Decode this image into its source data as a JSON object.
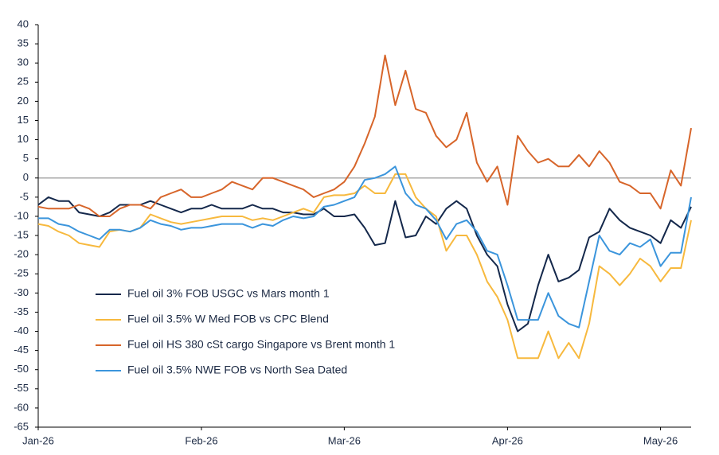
{
  "chart_data": {
    "type": "line",
    "categories": [
      "Jan-26",
      null,
      null,
      null,
      null,
      null,
      null,
      null,
      null,
      null,
      null,
      null,
      null,
      null,
      null,
      null,
      "Feb-26",
      null,
      null,
      null,
      null,
      null,
      null,
      null,
      null,
      null,
      null,
      null,
      null,
      null,
      "Mar-26",
      null,
      null,
      null,
      null,
      null,
      null,
      null,
      null,
      null,
      null,
      null,
      null,
      null,
      null,
      null,
      "Apr-26",
      null,
      null,
      null,
      null,
      null,
      null,
      null,
      null,
      null,
      null,
      null,
      null,
      null,
      null,
      "May-26",
      null,
      null,
      null
    ],
    "series": [
      {
        "name": "Fuel oil 3% FOB USGC vs Mars month 1",
        "color": "#14284b",
        "values": [
          -7,
          -5,
          -6,
          -6,
          -9,
          -9.5,
          -10,
          -9,
          -7,
          -7,
          -7,
          -6,
          -7,
          -8,
          -9,
          -8,
          -8,
          -7,
          -8,
          -8,
          -8,
          -7,
          -8,
          -8,
          -9,
          -9,
          -9.5,
          -9.5,
          -8,
          -10,
          -10,
          -9.5,
          -13,
          -17.5,
          -17,
          -6,
          -15.5,
          -15,
          -10,
          -12,
          -8,
          -6,
          -8,
          -15,
          -20,
          -23,
          -33,
          -40,
          -38,
          -28,
          -20,
          -27,
          -26,
          -24,
          -15.5,
          -14,
          -8,
          -11,
          -13,
          -14,
          -15,
          -17,
          -11,
          -13,
          -7.5
        ]
      },
      {
        "name": "Fuel oil 3.5% W Med FOB vs CPC Blend",
        "color": "#f7b93e",
        "values": [
          -12,
          -12.5,
          -14,
          -15,
          -17,
          -17.5,
          -18,
          -14,
          -13.5,
          -14,
          -13,
          -9.5,
          -10.5,
          -11.5,
          -12,
          -11.5,
          -11,
          -10.5,
          -10,
          -10,
          -10,
          -11,
          -10.5,
          -11,
          -10,
          -9,
          -8,
          -9,
          -5,
          -4.5,
          -4.5,
          -4,
          -2,
          -4,
          -4,
          1,
          1,
          -5,
          -8,
          -10,
          -19,
          -15,
          -15,
          -20,
          -27,
          -31,
          -37,
          -47,
          -47,
          -47,
          -40,
          -47,
          -43,
          -47,
          -38,
          -23,
          -25,
          -28,
          -25,
          -21,
          -23,
          -27,
          -23.5,
          -23.5,
          -11
        ]
      },
      {
        "name": "Fuel oil HS 380 cSt cargo Singapore vs Brent month 1",
        "color": "#d7652a",
        "values": [
          -7.5,
          -8,
          -8,
          -8,
          -7,
          -8,
          -10,
          -10,
          -8,
          -7,
          -7,
          -8,
          -5,
          -4,
          -3,
          -5,
          -5,
          -4,
          -3,
          -1,
          -2,
          -3,
          0,
          0,
          -1,
          -2,
          -3,
          -5,
          -4,
          -3,
          -1,
          3,
          9,
          16,
          32,
          19,
          28,
          18,
          17,
          11,
          8,
          10,
          17,
          4,
          -1,
          3,
          -7,
          11,
          7,
          4,
          5,
          3,
          3,
          6,
          3,
          7,
          4,
          -1,
          -2,
          -4,
          -4,
          -8,
          2,
          -2,
          13
        ]
      },
      {
        "name": "Fuel oil 3.5% NWE FOB vs North Sea Dated",
        "color": "#3b95dc",
        "values": [
          -10.5,
          -10.5,
          -12,
          -12.5,
          -14,
          -15,
          -16,
          -13.5,
          -13.5,
          -14,
          -13,
          -11,
          -12,
          -12.5,
          -13.5,
          -13,
          -13,
          -12.5,
          -12,
          -12,
          -12,
          -13,
          -12,
          -12.5,
          -11,
          -10,
          -10.5,
          -10,
          -7.5,
          -7,
          -6,
          -5,
          -0.5,
          0,
          1,
          3,
          -4,
          -7,
          -8,
          -11,
          -16,
          -12,
          -11,
          -14,
          -19,
          -20,
          -28,
          -37,
          -37,
          -37,
          -30,
          -36,
          -38,
          -39,
          -27,
          -15,
          -19,
          -20,
          -17,
          -18,
          -16,
          -23,
          -19.5,
          -19.5,
          -5
        ]
      }
    ],
    "ylim": [
      -65,
      40
    ],
    "yticks": [
      40,
      35,
      30,
      25,
      20,
      15,
      10,
      5,
      0,
      -5,
      -10,
      -15,
      -20,
      -25,
      -30,
      -35,
      -40,
      -45,
      -50,
      -55,
      -60,
      -65
    ],
    "zero_line": true,
    "legend": "lower left"
  }
}
